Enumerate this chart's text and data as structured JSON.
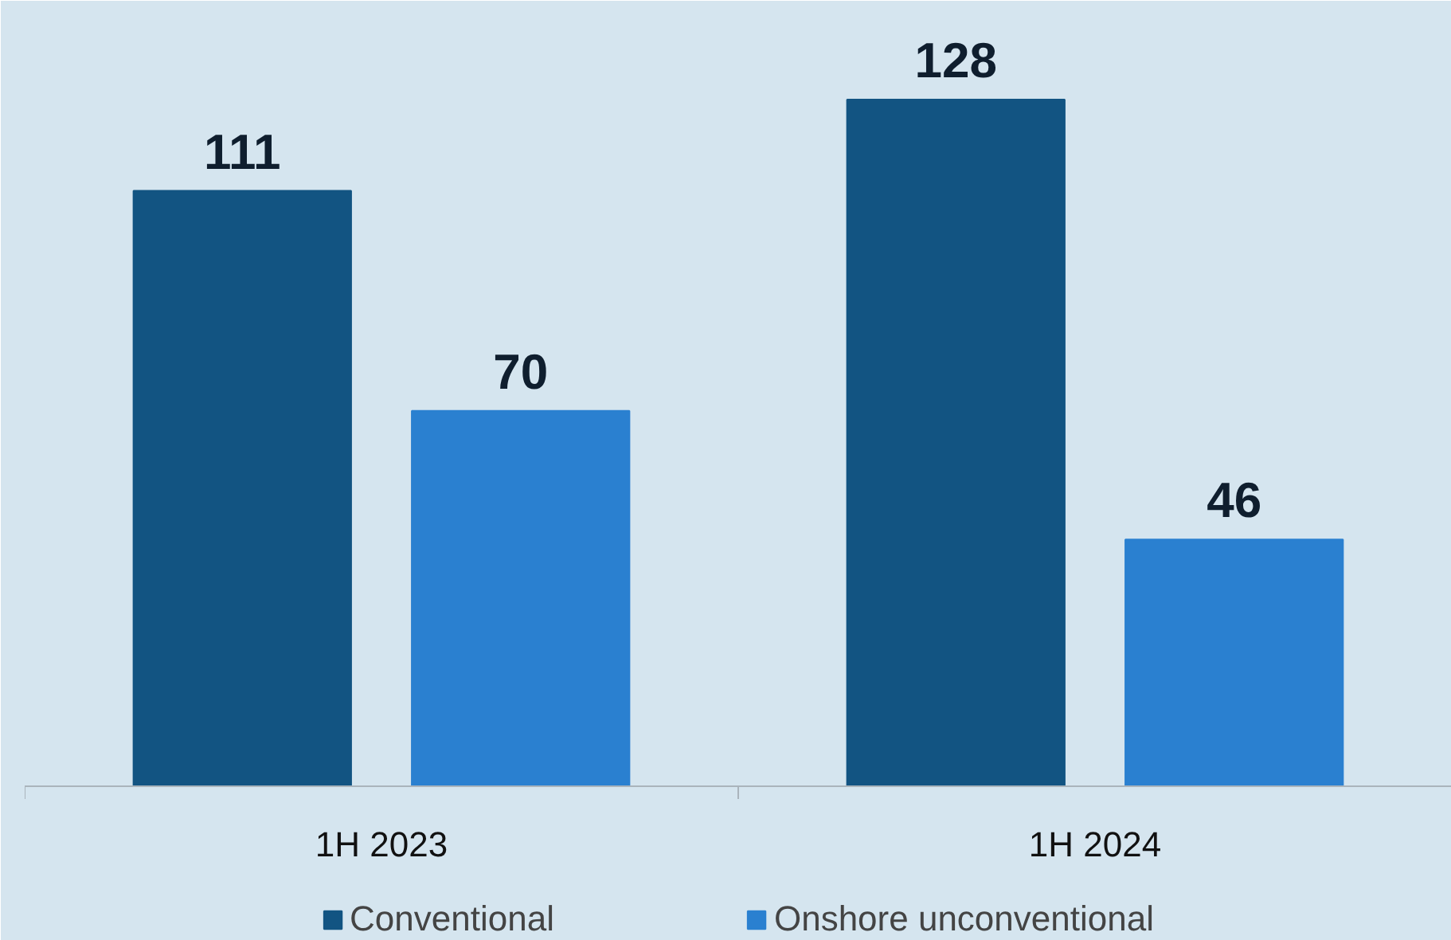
{
  "chart_data": {
    "type": "bar",
    "categories": [
      "1H 2023",
      "1H 2024"
    ],
    "series": [
      {
        "name": "Conventional",
        "color": "#125482",
        "values": [
          111,
          128
        ]
      },
      {
        "name": "Onshore unconventional",
        "color": "#2a80d0",
        "values": [
          70,
          46
        ]
      }
    ],
    "data_labels": true,
    "legend": "bottom",
    "grid": false
  }
}
